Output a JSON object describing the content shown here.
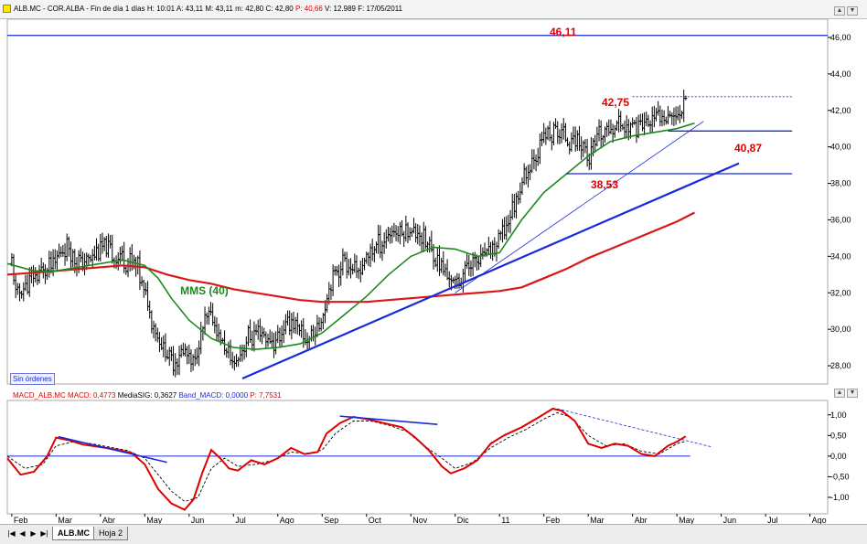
{
  "header": {
    "symbol": "ALB.MC - COR.ALBA",
    "period": "Fin de día 1 días",
    "time": "H: 10:01",
    "open": "A: 43,11",
    "high": "M: 43,11",
    "low": "m: 42,80",
    "close": "C: 42,80",
    "prev": "P: 40,66",
    "volume": "V: 12.989",
    "date": "F: 17/05/2011"
  },
  "badge": "Sin órdenes",
  "macd_header": {
    "name": "MACD_ALB.MC",
    "macd": "MACD: 0,4773",
    "signal": "MediaSIG: 0,3627",
    "band": "Band_MACD: 0,0000",
    "p": "P: 7,7531"
  },
  "tabs": {
    "active": "ALB.MC",
    "inactive": "Hoja 2"
  },
  "nav_buttons": [
    "|◀",
    "◀",
    "▶",
    "▶|"
  ],
  "colors": {
    "price_bars": "#000000",
    "mms40": "#1c8a1c",
    "mms_long": "#d81818",
    "trendline": "#1a2ad8",
    "levels_text": "#e00000",
    "mms_label": "#1c8a1c"
  },
  "chart_data": [
    {
      "type": "ohlc",
      "panel": "price",
      "ylim": [
        27,
        47
      ],
      "y_ticks": [
        "46,00",
        "44,00",
        "42,00",
        "40,00",
        "38,00",
        "36,00",
        "34,00",
        "32,00",
        "30,00",
        "28,00"
      ],
      "x_labels": [
        "Feb",
        "Mar",
        "Abr",
        "May",
        "Jun",
        "Jul",
        "Ago",
        "Sep",
        "Oct",
        "Nov",
        "Dic",
        "11",
        "Feb",
        "Mar",
        "Abr",
        "May",
        "Jun",
        "Jul",
        "Ago"
      ],
      "x_label_units": [
        0,
        1,
        2,
        3,
        4,
        5,
        6,
        7,
        8,
        9,
        10,
        11,
        12,
        13,
        14,
        15,
        16,
        17,
        18
      ],
      "x_range": [
        -0.1,
        18.4
      ],
      "price_path": [
        [
          0,
          33.6
        ],
        [
          0.1,
          31.8
        ],
        [
          0.4,
          32.6
        ],
        [
          0.8,
          33.4
        ],
        [
          1.0,
          33.8
        ],
        [
          1.2,
          34.6
        ],
        [
          1.6,
          33.5
        ],
        [
          2.0,
          34.5
        ],
        [
          2.4,
          34.0
        ],
        [
          2.8,
          33.6
        ],
        [
          3.0,
          32.0
        ],
        [
          3.3,
          29.5
        ],
        [
          3.6,
          28.3
        ],
        [
          3.9,
          28.8
        ],
        [
          4.1,
          28.0
        ],
        [
          4.3,
          30.0
        ],
        [
          4.5,
          30.8
        ],
        [
          4.7,
          29.5
        ],
        [
          5.0,
          28.0
        ],
        [
          5.3,
          29.5
        ],
        [
          5.6,
          29.8
        ],
        [
          5.9,
          29.2
        ],
        [
          6.1,
          29.9
        ],
        [
          6.3,
          30.6
        ],
        [
          6.6,
          29.4
        ],
        [
          6.9,
          30.0
        ],
        [
          7.0,
          30.8
        ],
        [
          7.2,
          32.8
        ],
        [
          7.5,
          33.8
        ],
        [
          7.8,
          33.0
        ],
        [
          8.1,
          34.3
        ],
        [
          8.5,
          35.2
        ],
        [
          8.9,
          35.5
        ],
        [
          9.2,
          35.3
        ],
        [
          9.5,
          34.2
        ],
        [
          9.8,
          33.0
        ],
        [
          10.0,
          32.5
        ],
        [
          10.3,
          33.5
        ],
        [
          10.6,
          34.0
        ],
        [
          10.9,
          34.5
        ],
        [
          11.2,
          36.0
        ],
        [
          11.5,
          38.0
        ],
        [
          11.8,
          39.5
        ],
        [
          12.0,
          40.5
        ],
        [
          12.3,
          40.8
        ],
        [
          12.6,
          40.5
        ],
        [
          12.9,
          40.2
        ],
        [
          13.0,
          39.0
        ],
        [
          13.2,
          40.5
        ],
        [
          13.4,
          40.8
        ],
        [
          13.6,
          41.2
        ],
        [
          13.9,
          41.0
        ],
        [
          14.2,
          41.3
        ],
        [
          14.5,
          41.5
        ],
        [
          14.8,
          42.0
        ],
        [
          15.0,
          41.5
        ],
        [
          15.1,
          42.3
        ],
        [
          15.2,
          42.9
        ]
      ],
      "series": [
        {
          "name": "MMS (40)",
          "points": [
            [
              -0.1,
              33.6
            ],
            [
              0.5,
              33.2
            ],
            [
              1.0,
              33.2
            ],
            [
              1.5,
              33.4
            ],
            [
              2.0,
              33.6
            ],
            [
              2.5,
              33.8
            ],
            [
              3.0,
              33.5
            ],
            [
              3.3,
              32.8
            ],
            [
              3.6,
              31.7
            ],
            [
              4.0,
              30.5
            ],
            [
              4.5,
              29.5
            ],
            [
              5.0,
              29.0
            ],
            [
              5.5,
              28.9
            ],
            [
              6.0,
              29.0
            ],
            [
              6.5,
              29.2
            ],
            [
              7.0,
              29.8
            ],
            [
              7.5,
              30.8
            ],
            [
              8.0,
              31.8
            ],
            [
              8.5,
              33.0
            ],
            [
              9.0,
              34.0
            ],
            [
              9.5,
              34.5
            ],
            [
              10.0,
              34.4
            ],
            [
              10.5,
              34.0
            ],
            [
              11.0,
              34.2
            ],
            [
              11.5,
              36.0
            ],
            [
              12.0,
              37.5
            ],
            [
              12.5,
              38.5
            ],
            [
              13.0,
              39.5
            ],
            [
              13.5,
              40.3
            ],
            [
              14.0,
              40.6
            ],
            [
              14.5,
              40.8
            ],
            [
              15.0,
              41.0
            ],
            [
              15.4,
              41.3
            ]
          ]
        },
        {
          "name": "",
          "points": [
            [
              -0.1,
              33.0
            ],
            [
              0.5,
              33.1
            ],
            [
              1.0,
              33.2
            ],
            [
              2.0,
              33.4
            ],
            [
              2.5,
              33.5
            ],
            [
              3.0,
              33.4
            ],
            [
              3.5,
              33.0
            ],
            [
              4.0,
              32.7
            ],
            [
              4.5,
              32.5
            ],
            [
              5.0,
              32.2
            ],
            [
              5.5,
              32.0
            ],
            [
              6.0,
              31.8
            ],
            [
              6.5,
              31.6
            ],
            [
              7.0,
              31.5
            ],
            [
              7.5,
              31.5
            ],
            [
              8.0,
              31.5
            ],
            [
              8.5,
              31.6
            ],
            [
              9.0,
              31.7
            ],
            [
              9.5,
              31.8
            ],
            [
              10.0,
              31.9
            ],
            [
              10.5,
              32.0
            ],
            [
              11.0,
              32.1
            ],
            [
              11.5,
              32.3
            ],
            [
              12.0,
              32.8
            ],
            [
              12.5,
              33.3
            ],
            [
              13.0,
              33.9
            ],
            [
              13.5,
              34.4
            ],
            [
              14.0,
              34.9
            ],
            [
              14.5,
              35.4
            ],
            [
              15.0,
              35.9
            ],
            [
              15.4,
              36.4
            ]
          ]
        }
      ],
      "trendlines": [
        {
          "from": [
            5.2,
            27.3
          ],
          "to": [
            16.4,
            39.1
          ],
          "weight": "thick"
        },
        {
          "from": [
            10.0,
            32.0
          ],
          "to": [
            15.6,
            41.4
          ],
          "weight": "thin"
        }
      ],
      "horizontal_lines": [
        {
          "value": 46.11,
          "label": "46,11",
          "from": -0.1,
          "to": 18.4,
          "style": "solid"
        },
        {
          "value": 42.75,
          "label": "42,75",
          "from": 14.0,
          "to": 17.6,
          "style": "dashed"
        },
        {
          "value": 40.87,
          "label": "40,87",
          "from": 14.8,
          "to": 17.6,
          "style": "solid"
        },
        {
          "value": 38.53,
          "label": "38,53",
          "from": 12.5,
          "to": 17.6,
          "style": "solid"
        }
      ],
      "annotations": [
        {
          "text": "MMS (40)",
          "x": 3.8,
          "y": 31.9
        }
      ]
    },
    {
      "type": "line",
      "panel": "macd",
      "ylim": [
        -1.4,
        1.35
      ],
      "y_ticks": [
        "1,00",
        "0,50",
        "0,00",
        "-0,50",
        "-1,00"
      ],
      "x_range": [
        -0.1,
        18.4
      ],
      "series": [
        {
          "name": "MACD",
          "points": [
            [
              -0.1,
              -0.05
            ],
            [
              0.2,
              -0.45
            ],
            [
              0.5,
              -0.38
            ],
            [
              0.8,
              0.0
            ],
            [
              1.0,
              0.45
            ],
            [
              1.3,
              0.38
            ],
            [
              1.6,
              0.28
            ],
            [
              2.0,
              0.22
            ],
            [
              2.4,
              0.15
            ],
            [
              2.7,
              0.08
            ],
            [
              3.0,
              -0.2
            ],
            [
              3.3,
              -0.8
            ],
            [
              3.6,
              -1.15
            ],
            [
              3.9,
              -1.3
            ],
            [
              4.1,
              -1.05
            ],
            [
              4.3,
              -0.4
            ],
            [
              4.5,
              0.15
            ],
            [
              4.7,
              -0.05
            ],
            [
              4.9,
              -0.3
            ],
            [
              5.1,
              -0.35
            ],
            [
              5.4,
              -0.1
            ],
            [
              5.7,
              -0.2
            ],
            [
              6.0,
              -0.05
            ],
            [
              6.3,
              0.2
            ],
            [
              6.6,
              0.05
            ],
            [
              6.9,
              0.1
            ],
            [
              7.1,
              0.55
            ],
            [
              7.4,
              0.8
            ],
            [
              7.7,
              0.95
            ],
            [
              8.0,
              0.9
            ],
            [
              8.4,
              0.8
            ],
            [
              8.8,
              0.7
            ],
            [
              9.1,
              0.45
            ],
            [
              9.4,
              0.15
            ],
            [
              9.7,
              -0.25
            ],
            [
              9.9,
              -0.42
            ],
            [
              10.2,
              -0.3
            ],
            [
              10.5,
              -0.1
            ],
            [
              10.8,
              0.3
            ],
            [
              11.1,
              0.5
            ],
            [
              11.5,
              0.7
            ],
            [
              11.9,
              0.95
            ],
            [
              12.2,
              1.15
            ],
            [
              12.4,
              1.1
            ],
            [
              12.7,
              0.85
            ],
            [
              13.0,
              0.3
            ],
            [
              13.3,
              0.2
            ],
            [
              13.6,
              0.3
            ],
            [
              13.9,
              0.25
            ],
            [
              14.2,
              0.05
            ],
            [
              14.5,
              0.0
            ],
            [
              14.8,
              0.25
            ],
            [
              15.0,
              0.35
            ],
            [
              15.2,
              0.48
            ]
          ]
        },
        {
          "name": "MediaSIG",
          "points": [
            [
              -0.1,
              0.0
            ],
            [
              0.3,
              -0.3
            ],
            [
              0.7,
              -0.2
            ],
            [
              1.0,
              0.25
            ],
            [
              1.4,
              0.35
            ],
            [
              1.8,
              0.3
            ],
            [
              2.2,
              0.22
            ],
            [
              2.6,
              0.14
            ],
            [
              3.0,
              -0.05
            ],
            [
              3.3,
              -0.45
            ],
            [
              3.6,
              -0.85
            ],
            [
              3.9,
              -1.1
            ],
            [
              4.2,
              -1.0
            ],
            [
              4.5,
              -0.3
            ],
            [
              4.8,
              -0.05
            ],
            [
              5.1,
              -0.25
            ],
            [
              5.5,
              -0.2
            ],
            [
              5.9,
              -0.1
            ],
            [
              6.3,
              0.1
            ],
            [
              6.7,
              0.05
            ],
            [
              7.0,
              0.15
            ],
            [
              7.3,
              0.55
            ],
            [
              7.7,
              0.85
            ],
            [
              8.1,
              0.85
            ],
            [
              8.5,
              0.75
            ],
            [
              8.9,
              0.6
            ],
            [
              9.3,
              0.25
            ],
            [
              9.7,
              -0.05
            ],
            [
              10.0,
              -0.3
            ],
            [
              10.4,
              -0.15
            ],
            [
              10.8,
              0.2
            ],
            [
              11.2,
              0.45
            ],
            [
              11.6,
              0.65
            ],
            [
              12.0,
              0.9
            ],
            [
              12.3,
              1.05
            ],
            [
              12.6,
              0.95
            ],
            [
              13.0,
              0.5
            ],
            [
              13.4,
              0.25
            ],
            [
              13.8,
              0.3
            ],
            [
              14.2,
              0.12
            ],
            [
              14.6,
              0.05
            ],
            [
              15.0,
              0.3
            ],
            [
              15.2,
              0.36
            ]
          ]
        }
      ],
      "zero_line": {
        "value": 0.0,
        "from": -0.1,
        "to": 15.3
      },
      "trendlines": [
        {
          "from": [
            1.05,
            0.47
          ],
          "to": [
            3.5,
            -0.15
          ],
          "style": "solid"
        },
        {
          "from": [
            7.4,
            0.97
          ],
          "to": [
            9.6,
            0.77
          ],
          "style": "solid"
        },
        {
          "from": [
            12.3,
            1.15
          ],
          "to": [
            15.8,
            0.22
          ],
          "style": "dashed"
        }
      ]
    }
  ]
}
